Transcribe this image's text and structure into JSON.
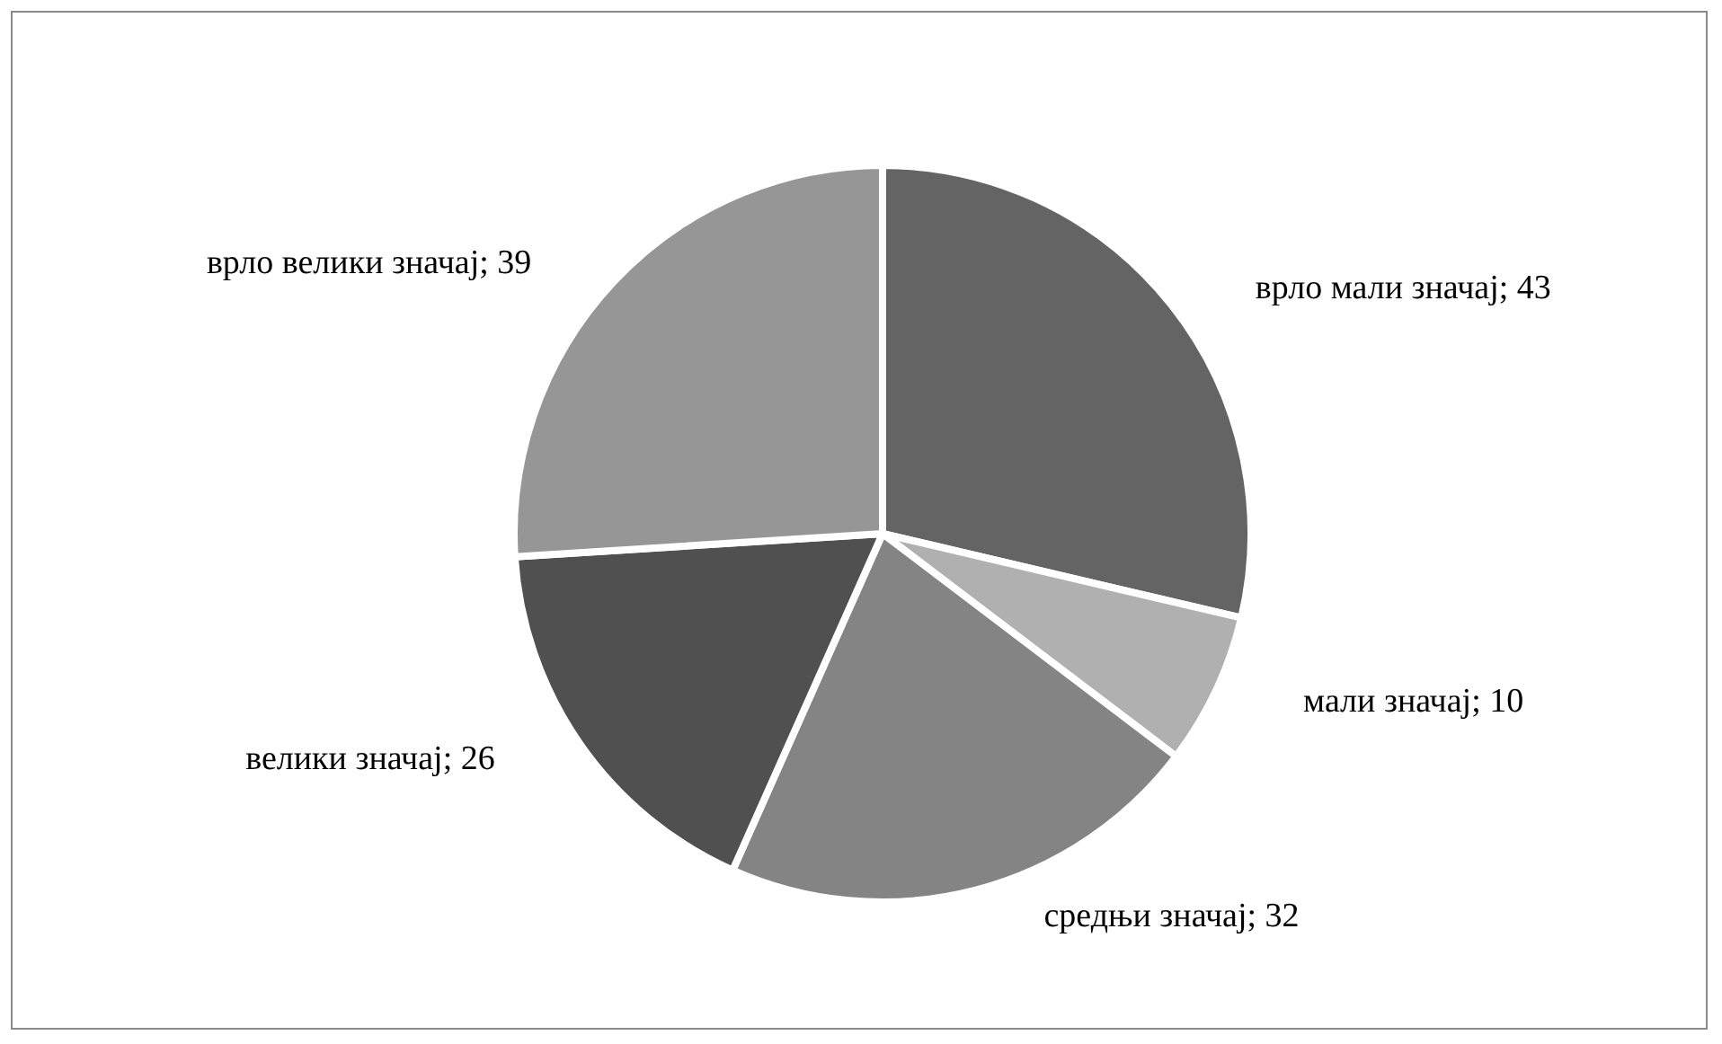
{
  "chart_data": {
    "type": "pie",
    "categories": [
      "врло мали значај",
      "мали значај",
      "средњи значај",
      "велики значај",
      "врло велики значај"
    ],
    "values": [
      43,
      10,
      32,
      26,
      39
    ],
    "value_labels": [
      "; 43",
      "; 10",
      "; 32",
      "; 26",
      "; 39"
    ],
    "colors": [
      "#646464",
      "#b0b0b0",
      "#848484",
      "#505050",
      "#969696"
    ],
    "legend": false
  }
}
